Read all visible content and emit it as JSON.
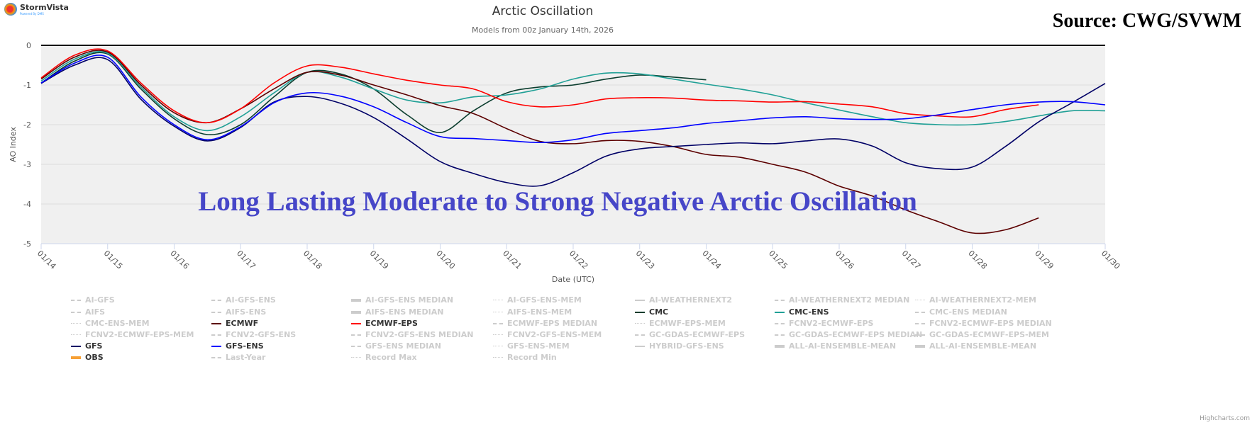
{
  "header": {
    "brand": "StormVista",
    "brand_sub": "Powered By DMS",
    "title": "Arctic Oscillation",
    "subtitle": "Models from 00z January 14th, 2026",
    "source": "Source: CWG/SVWM"
  },
  "annotation": "Long Lasting Moderate to Strong Negative Arctic Oscillation",
  "credits": "Highcharts.com",
  "chart_data": {
    "type": "line",
    "title": "Arctic Oscillation",
    "subtitle": "Models from 00z January 14th, 2026",
    "xlabel": "Date (UTC)",
    "ylabel": "AO Index",
    "ylim": [
      -5,
      0
    ],
    "y_ticks": [
      "0",
      "-1",
      "-2",
      "-3",
      "-4",
      "-5"
    ],
    "x_ticks": [
      "01/14",
      "01/15",
      "01/16",
      "01/17",
      "01/18",
      "01/19",
      "01/20",
      "01/21",
      "01/22",
      "01/23",
      "01/24",
      "01/25",
      "01/26",
      "01/27",
      "01/28",
      "01/29",
      "01/30"
    ],
    "x_start": "01/14",
    "x_step_days": 0.5,
    "grid": true,
    "legend": "bottom",
    "series": [
      {
        "name": "CMC",
        "color": "#0b3d2e",
        "values": [
          -0.95,
          -0.4,
          -0.22,
          -1.1,
          -1.85,
          -2.25,
          -2.0,
          -1.3,
          -0.68,
          -0.72,
          -1.1,
          -1.75,
          -2.2,
          -1.65,
          -1.2,
          -1.05,
          -1.0,
          -0.85,
          -0.75,
          -0.8,
          -0.87
        ]
      },
      {
        "name": "CMC-ENS",
        "color": "#20a096",
        "values": [
          -0.9,
          -0.35,
          -0.2,
          -1.05,
          -1.8,
          -2.15,
          -1.8,
          -1.2,
          -0.68,
          -0.8,
          -1.1,
          -1.38,
          -1.45,
          -1.3,
          -1.25,
          -1.1,
          -0.85,
          -0.7,
          -0.72,
          -0.85,
          -0.98,
          -1.1,
          -1.25,
          -1.45,
          -1.63,
          -1.8,
          -1.95,
          -2.0,
          -2.0,
          -1.92,
          -1.78,
          -1.65,
          -1.65
        ]
      },
      {
        "name": "ECMWF",
        "color": "#5c0000",
        "values": [
          -0.85,
          -0.3,
          -0.17,
          -1.0,
          -1.7,
          -1.95,
          -1.6,
          -1.1,
          -0.68,
          -0.75,
          -1.0,
          -1.25,
          -1.52,
          -1.72,
          -2.1,
          -2.42,
          -2.48,
          -2.4,
          -2.42,
          -2.55,
          -2.75,
          -2.82,
          -3.0,
          -3.2,
          -3.55,
          -3.8,
          -4.15,
          -4.45,
          -4.73,
          -4.65,
          -4.35
        ]
      },
      {
        "name": "ECMWF-EPS",
        "color": "#ff0000",
        "values": [
          -0.82,
          -0.25,
          -0.14,
          -0.95,
          -1.65,
          -1.95,
          -1.6,
          -0.95,
          -0.52,
          -0.55,
          -0.72,
          -0.88,
          -1.0,
          -1.1,
          -1.42,
          -1.55,
          -1.5,
          -1.35,
          -1.32,
          -1.33,
          -1.38,
          -1.4,
          -1.43,
          -1.42,
          -1.48,
          -1.55,
          -1.72,
          -1.78,
          -1.8,
          -1.62,
          -1.5
        ]
      },
      {
        "name": "GFS",
        "color": "#000066",
        "values": [
          -0.96,
          -0.5,
          -0.36,
          -1.36,
          -2.04,
          -2.41,
          -2.07,
          -1.43,
          -1.29,
          -1.46,
          -1.82,
          -2.36,
          -2.93,
          -3.23,
          -3.46,
          -3.54,
          -3.21,
          -2.79,
          -2.61,
          -2.55,
          -2.5,
          -2.46,
          -2.48,
          -2.41,
          -2.36,
          -2.54,
          -2.96,
          -3.11,
          -3.07,
          -2.55,
          -1.93,
          -1.45,
          -0.96
        ]
      },
      {
        "name": "GFS-ENS",
        "color": "#0000ff",
        "values": [
          -0.95,
          -0.45,
          -0.3,
          -1.3,
          -2.0,
          -2.38,
          -2.05,
          -1.45,
          -1.2,
          -1.28,
          -1.55,
          -1.95,
          -2.3,
          -2.35,
          -2.4,
          -2.45,
          -2.38,
          -2.22,
          -2.15,
          -2.08,
          -1.97,
          -1.9,
          -1.83,
          -1.8,
          -1.85,
          -1.87,
          -1.85,
          -1.75,
          -1.62,
          -1.5,
          -1.43,
          -1.42,
          -1.5
        ]
      }
    ]
  },
  "legend": [
    {
      "label": "AI-GFS",
      "on": false,
      "style": "dashdot"
    },
    {
      "label": "AI-GFS-ENS",
      "on": false,
      "style": "dashdot"
    },
    {
      "label": "AI-GFS-ENS MEDIAN",
      "on": false,
      "style": "thick"
    },
    {
      "label": "AI-GFS-ENS-MEM",
      "on": false,
      "style": "dotted"
    },
    {
      "label": "AI-WEATHERNEXT2",
      "on": false,
      "style": "solid"
    },
    {
      "label": "AI-WEATHERNEXT2 MEDIAN",
      "on": false,
      "style": "dashdot"
    },
    {
      "label": "AI-WEATHERNEXT2-MEM",
      "on": false,
      "style": "dotted"
    },
    {
      "label": "AIFS",
      "on": false,
      "style": "dashdot"
    },
    {
      "label": "AIFS-ENS",
      "on": false,
      "style": "dashdot"
    },
    {
      "label": "AIFS-ENS MEDIAN",
      "on": false,
      "style": "thick"
    },
    {
      "label": "AIFS-ENS-MEM",
      "on": false,
      "style": "dotted"
    },
    {
      "label": "CMC",
      "on": true,
      "color": "#0b3d2e",
      "style": "solid"
    },
    {
      "label": "CMC-ENS",
      "on": true,
      "color": "#20a096",
      "style": "solid"
    },
    {
      "label": "CMC-ENS MEDIAN",
      "on": false,
      "style": "dashdot"
    },
    {
      "label": "CMC-ENS-MEM",
      "on": false,
      "style": "dotted"
    },
    {
      "label": "ECMWF",
      "on": true,
      "color": "#5c0000",
      "style": "solid"
    },
    {
      "label": "ECMWF-EPS",
      "on": true,
      "color": "#ff0000",
      "style": "solid"
    },
    {
      "label": "ECMWF-EPS MEDIAN",
      "on": false,
      "style": "dashdot"
    },
    {
      "label": "ECMWF-EPS-MEM",
      "on": false,
      "style": "dotted"
    },
    {
      "label": "FCNV2-ECMWF-EPS",
      "on": false,
      "style": "dashdot"
    },
    {
      "label": "FCNV2-ECMWF-EPS MEDIAN",
      "on": false,
      "style": "dashdot"
    },
    {
      "label": "FCNV2-ECMWF-EPS-MEM",
      "on": false,
      "style": "dotted"
    },
    {
      "label": "FCNV2-GFS-ENS",
      "on": false,
      "style": "dashdot"
    },
    {
      "label": "FCNV2-GFS-ENS MEDIAN",
      "on": false,
      "style": "dashdot"
    },
    {
      "label": "FCNV2-GFS-ENS-MEM",
      "on": false,
      "style": "dotted"
    },
    {
      "label": "GC-GDAS-ECMWF-EPS",
      "on": false,
      "style": "dashdot"
    },
    {
      "label": "GC-GDAS-ECMWF-EPS MEDIAN",
      "on": false,
      "style": "dashdot"
    },
    {
      "label": "GC-GDAS-ECMWF-EPS-MEM",
      "on": false,
      "style": "dashdot"
    },
    {
      "label": "GFS",
      "on": true,
      "color": "#000066",
      "style": "solid"
    },
    {
      "label": "GFS-ENS",
      "on": true,
      "color": "#0000ff",
      "style": "solid"
    },
    {
      "label": "GFS-ENS MEDIAN",
      "on": false,
      "style": "dashdot"
    },
    {
      "label": "GFS-ENS-MEM",
      "on": false,
      "style": "dotted"
    },
    {
      "label": "HYBRID-GFS-ENS",
      "on": false,
      "style": "solid"
    },
    {
      "label": "ALL-AI-ENSEMBLE-MEAN",
      "on": false,
      "style": "thick"
    },
    {
      "label": "ALL-AI-ENSEMBLE-MEAN",
      "on": false,
      "style": "thick"
    },
    {
      "label": "OBS",
      "on": true,
      "color": "#f7a035",
      "style": "thick"
    },
    {
      "label": "Last-Year",
      "on": false,
      "style": "dashdot"
    },
    {
      "label": "Record Max",
      "on": false,
      "style": "dotted"
    },
    {
      "label": "Record Min",
      "on": false,
      "style": "dotted"
    }
  ]
}
